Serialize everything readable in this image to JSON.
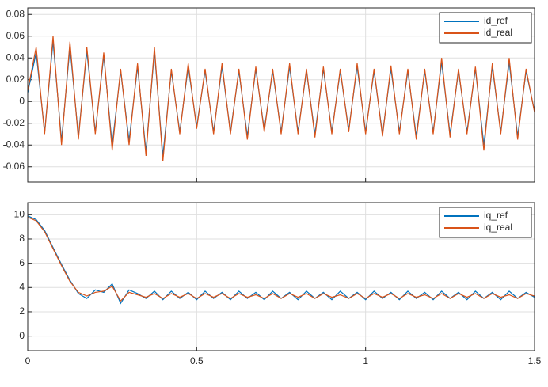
{
  "chart_data": [
    {
      "type": "line",
      "x": [
        0,
        0.025,
        0.05,
        0.075,
        0.1,
        0.125,
        0.15,
        0.175,
        0.2,
        0.225,
        0.25,
        0.275,
        0.3,
        0.325,
        0.35,
        0.375,
        0.4,
        0.425,
        0.45,
        0.475,
        0.5,
        0.525,
        0.55,
        0.575,
        0.6,
        0.625,
        0.65,
        0.675,
        0.7,
        0.725,
        0.75,
        0.775,
        0.8,
        0.825,
        0.85,
        0.875,
        0.9,
        0.925,
        0.95,
        0.975,
        1,
        1.025,
        1.05,
        1.075,
        1.1,
        1.125,
        1.15,
        1.175,
        1.2,
        1.225,
        1.25,
        1.275,
        1.3,
        1.325,
        1.35,
        1.375,
        1.4,
        1.425,
        1.45,
        1.475,
        1.5
      ],
      "series": [
        {
          "name": "id_ref",
          "color": "#0072bd",
          "values": [
            0.008,
            0.045,
            -0.028,
            0.055,
            -0.036,
            0.05,
            -0.032,
            0.046,
            -0.028,
            0.042,
            -0.04,
            0.028,
            -0.036,
            0.032,
            -0.046,
            0.046,
            -0.05,
            0.028,
            -0.028,
            0.032,
            -0.023,
            0.028,
            -0.028,
            0.032,
            -0.028,
            0.028,
            -0.032,
            0.03,
            -0.026,
            0.028,
            -0.028,
            0.032,
            -0.028,
            0.028,
            -0.03,
            0.03,
            -0.028,
            0.028,
            -0.026,
            0.032,
            -0.028,
            0.028,
            -0.03,
            0.03,
            -0.028,
            0.028,
            -0.032,
            0.028,
            -0.028,
            0.036,
            -0.03,
            0.028,
            -0.028,
            0.03,
            -0.04,
            0.032,
            -0.028,
            0.036,
            -0.032,
            0.028,
            -0.009
          ]
        },
        {
          "name": "id_real",
          "color": "#d95319",
          "values": [
            0.01,
            0.05,
            -0.03,
            0.06,
            -0.04,
            0.055,
            -0.035,
            0.05,
            -0.03,
            0.045,
            -0.045,
            0.03,
            -0.04,
            0.035,
            -0.05,
            0.05,
            -0.055,
            0.03,
            -0.03,
            0.035,
            -0.025,
            0.03,
            -0.03,
            0.035,
            -0.03,
            0.03,
            -0.035,
            0.032,
            -0.028,
            0.03,
            -0.03,
            0.035,
            -0.03,
            0.03,
            -0.033,
            0.032,
            -0.03,
            0.03,
            -0.028,
            0.035,
            -0.03,
            0.03,
            -0.032,
            0.033,
            -0.03,
            0.03,
            -0.035,
            0.03,
            -0.03,
            0.04,
            -0.033,
            0.03,
            -0.03,
            0.032,
            -0.045,
            0.035,
            -0.03,
            0.04,
            -0.035,
            0.03,
            -0.01
          ]
        }
      ],
      "xlim": [
        0,
        1.5
      ],
      "xticks": [
        0,
        0.5,
        1,
        1.5
      ],
      "show_xtick_labels": false,
      "ylim": [
        -0.074,
        0.086
      ],
      "yticks": [
        -0.06,
        -0.04,
        -0.02,
        0,
        0.02,
        0.04,
        0.06,
        0.08
      ],
      "grid": true,
      "legend": "upper-right"
    },
    {
      "type": "line",
      "x": [
        0,
        0.025,
        0.05,
        0.075,
        0.1,
        0.125,
        0.15,
        0.175,
        0.2,
        0.225,
        0.25,
        0.275,
        0.3,
        0.325,
        0.35,
        0.375,
        0.4,
        0.425,
        0.45,
        0.475,
        0.5,
        0.525,
        0.55,
        0.575,
        0.6,
        0.625,
        0.65,
        0.675,
        0.7,
        0.725,
        0.75,
        0.775,
        0.8,
        0.825,
        0.85,
        0.875,
        0.9,
        0.925,
        0.95,
        0.975,
        1,
        1.025,
        1.05,
        1.075,
        1.1,
        1.125,
        1.15,
        1.175,
        1.2,
        1.225,
        1.25,
        1.275,
        1.3,
        1.325,
        1.35,
        1.375,
        1.4,
        1.425,
        1.45,
        1.475,
        1.5
      ],
      "series": [
        {
          "name": "iq_ref",
          "color": "#0072bd",
          "values": [
            9.9,
            9.6,
            8.7,
            7.3,
            5.9,
            4.6,
            3.5,
            3.1,
            3.8,
            3.6,
            4.3,
            2.7,
            3.8,
            3.5,
            3.1,
            3.7,
            3.0,
            3.7,
            3.1,
            3.6,
            3.0,
            3.7,
            3.1,
            3.6,
            3.0,
            3.7,
            3.1,
            3.6,
            3.0,
            3.7,
            3.1,
            3.6,
            3.0,
            3.7,
            3.1,
            3.6,
            3.0,
            3.7,
            3.1,
            3.6,
            3.0,
            3.7,
            3.1,
            3.6,
            3.0,
            3.7,
            3.1,
            3.6,
            3.0,
            3.7,
            3.1,
            3.6,
            3.0,
            3.7,
            3.1,
            3.6,
            3.0,
            3.7,
            3.1,
            3.6,
            3.2
          ]
        },
        {
          "name": "iq_real",
          "color": "#d95319",
          "values": [
            9.8,
            9.5,
            8.6,
            7.2,
            5.8,
            4.5,
            3.6,
            3.3,
            3.6,
            3.7,
            4.1,
            2.9,
            3.6,
            3.4,
            3.2,
            3.5,
            3.1,
            3.5,
            3.2,
            3.5,
            3.1,
            3.5,
            3.2,
            3.5,
            3.1,
            3.5,
            3.2,
            3.4,
            3.1,
            3.5,
            3.1,
            3.5,
            3.2,
            3.5,
            3.1,
            3.5,
            3.2,
            3.4,
            3.1,
            3.5,
            3.1,
            3.5,
            3.2,
            3.5,
            3.1,
            3.5,
            3.2,
            3.4,
            3.1,
            3.5,
            3.1,
            3.5,
            3.2,
            3.5,
            3.1,
            3.5,
            3.2,
            3.4,
            3.1,
            3.5,
            3.3
          ]
        }
      ],
      "xlim": [
        0,
        1.5
      ],
      "xticks": [
        0,
        0.5,
        1,
        1.5
      ],
      "show_xtick_labels": true,
      "ylim": [
        -1.2,
        11
      ],
      "yticks": [
        0,
        2,
        4,
        6,
        8,
        10
      ],
      "grid": true,
      "legend": "upper-right"
    }
  ]
}
